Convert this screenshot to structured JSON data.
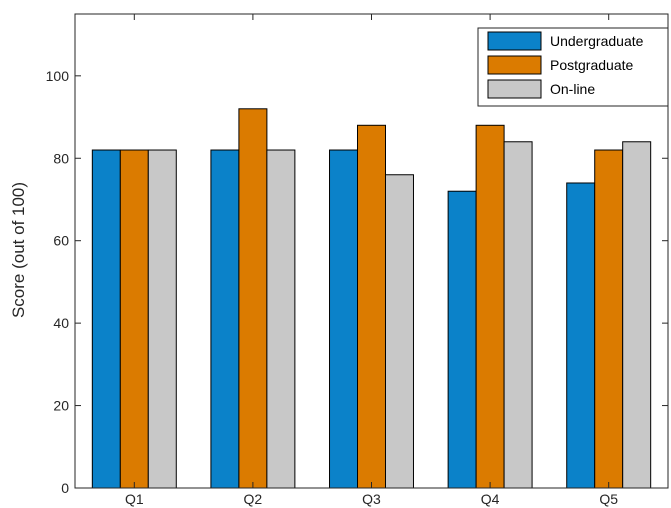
{
  "chart_data": {
    "type": "bar",
    "title": "",
    "xlabel": "",
    "ylabel": "Score (out of 100)",
    "categories": [
      "Q1",
      "Q2",
      "Q3",
      "Q4",
      "Q5"
    ],
    "series": [
      {
        "name": "Undergraduate",
        "color": "#0b82c9",
        "values": [
          82,
          82,
          82,
          72,
          74
        ]
      },
      {
        "name": "Postgraduate",
        "color": "#db7b00",
        "values": [
          82,
          92,
          88,
          88,
          82
        ]
      },
      {
        "name": "On-line",
        "color": "#c8c8c8",
        "values": [
          82,
          82,
          76,
          84,
          84
        ]
      }
    ],
    "ylim": [
      0,
      115
    ],
    "yticks": [
      "0",
      "20",
      "40",
      "60",
      "80",
      "100"
    ],
    "grid": false,
    "legend_position": "top-right"
  }
}
